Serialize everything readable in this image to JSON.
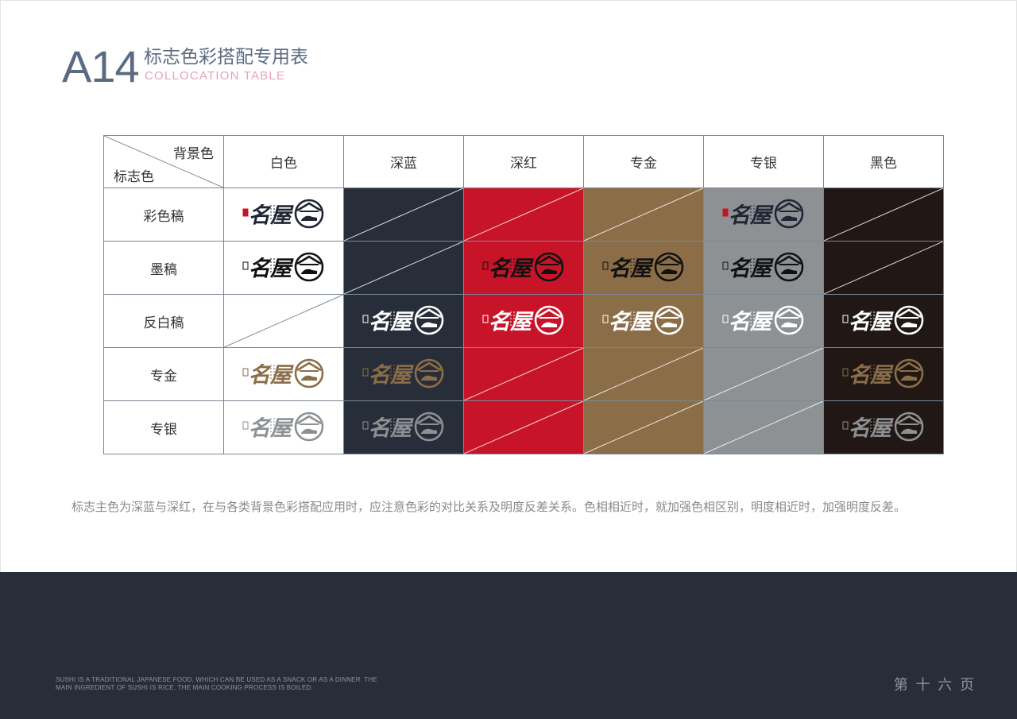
{
  "header": {
    "code": "A14",
    "title_cn": "标志色彩搭配专用表",
    "title_en": "COLLOCATION TABLE"
  },
  "table": {
    "corner_top": "背景色",
    "corner_bottom": "标志色",
    "columns": [
      {
        "label": "白色",
        "bg": "#ffffff"
      },
      {
        "label": "深蓝",
        "bg": "#282e39"
      },
      {
        "label": "深红",
        "bg": "#c81428"
      },
      {
        "label": "专金",
        "bg": "#8b6e48"
      },
      {
        "label": "专银",
        "bg": "#8e9193"
      },
      {
        "label": "黑色",
        "bg": "#211816"
      }
    ],
    "rows": [
      {
        "label": "彩色稿",
        "cells": [
          "color",
          null,
          null,
          null,
          "color",
          null
        ]
      },
      {
        "label": "墨稿",
        "cells": [
          "black",
          null,
          "black",
          "black",
          "black",
          null
        ]
      },
      {
        "label": "反白稿",
        "cells": [
          null,
          "white",
          "white",
          "white",
          "white",
          "white"
        ]
      },
      {
        "label": "专金",
        "cells": [
          "gold",
          "gold",
          null,
          null,
          null,
          "gold"
        ]
      },
      {
        "label": "专银",
        "cells": [
          "silver",
          "silver",
          null,
          null,
          null,
          "silver"
        ]
      }
    ]
  },
  "logo_colors": {
    "color": "#1f2633",
    "black": "#111111",
    "white": "#ffffff",
    "gold": "#8b6e48",
    "silver": "#8e9193",
    "seal": "#c81428"
  },
  "logo_text": "名屋",
  "note": "标志主色为深蓝与深红，在与各类背景色彩搭配应用时，应注意色彩的对比关系及明度反差关系。色相相近时，就加强色相区别，明度相近时，加强明度反差。",
  "footer": {
    "description": "SUSHI IS A TRADITIONAL JAPANESE FOOD, WHICH CAN BE USED AS A SNACK OR AS A DINNER. THE MAIN INGREDIENT OF SUSHI IS RICE. THE MAIN COOKING PROCESS IS BOILED.",
    "page_number": "第 十 六 页"
  }
}
